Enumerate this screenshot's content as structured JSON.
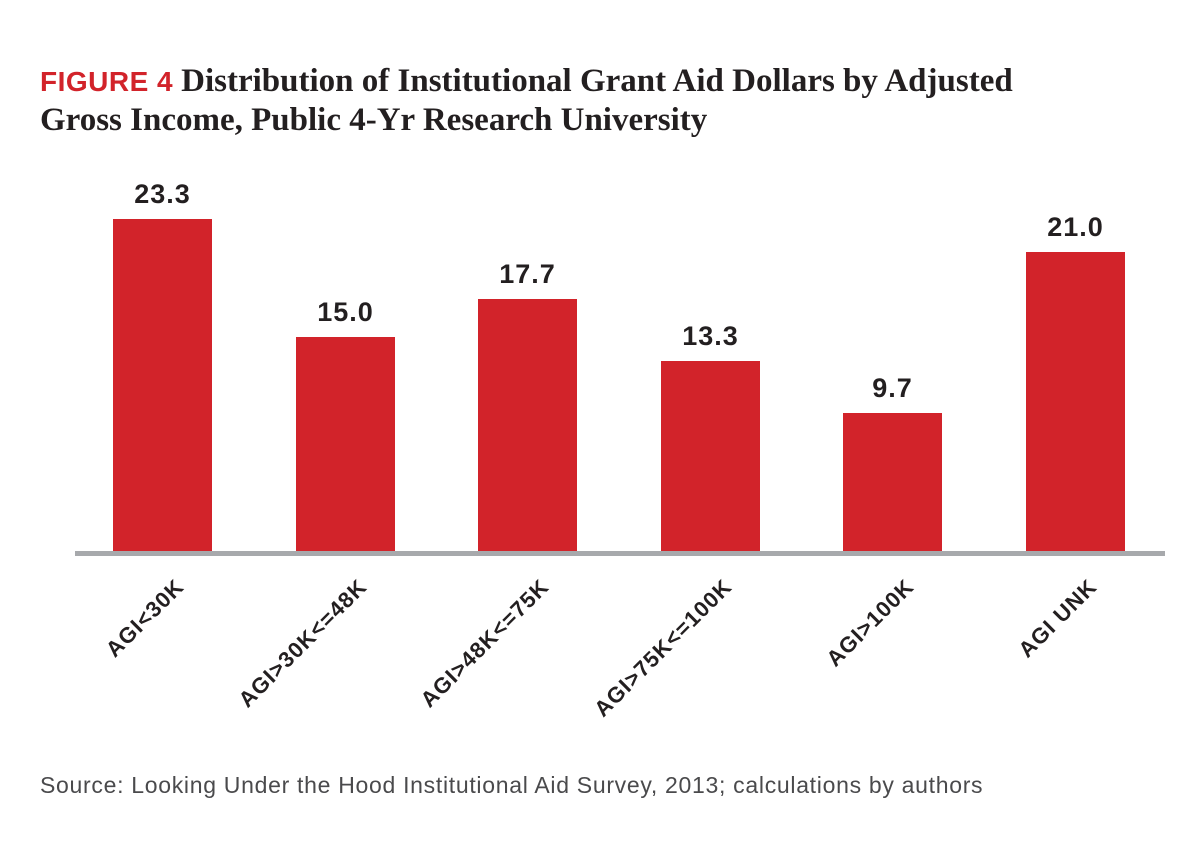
{
  "figure": {
    "label": "FIGURE 4",
    "title_line1": "Distribution of Institutional Grant Aid Dollars by Adjusted",
    "title_line2": "Gross Income, Public 4-Yr Research University",
    "title_full": "Distribution of Institutional Grant Aid Dollars by Adjusted Gross Income, Public 4-Yr Research University"
  },
  "chart_data": {
    "type": "bar",
    "categories": [
      "AGI<30K",
      "AGI>30K<=48K",
      "AGI>48K<=75K",
      "AGI>75K<=100K",
      "AGI>100K",
      "AGI UNK"
    ],
    "values": [
      23.3,
      15.0,
      17.7,
      13.3,
      9.7,
      21.0
    ],
    "value_labels": [
      "23.3",
      "15.0",
      "17.7",
      "13.3",
      "9.7",
      "21.0"
    ],
    "title": "Distribution of Institutional Grant Aid Dollars by Adjusted Gross Income, Public 4-Yr Research University",
    "xlabel": "",
    "ylabel": "",
    "ylim": [
      0,
      25
    ],
    "grid": false,
    "legend": false,
    "bar_color": "#d2232a",
    "axis_color": "#a7a9ac",
    "value_label_color": "#231f20",
    "tick_label_rotation_deg": -45
  },
  "source": {
    "text": "Source: Looking Under the Hood Institutional Aid Survey, 2013; calculations by authors"
  },
  "colors": {
    "accent_red": "#d2232a",
    "axis_gray": "#a7a9ac",
    "text_dark": "#231f20",
    "source_gray": "#4a4a4c",
    "background": "#ffffff"
  }
}
